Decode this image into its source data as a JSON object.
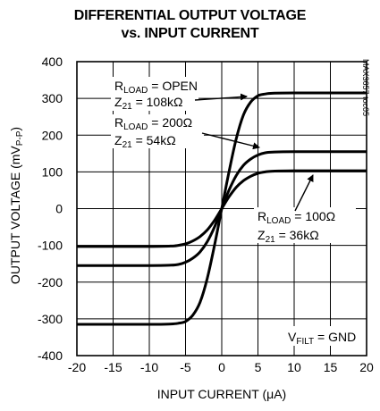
{
  "chart_data": {
    "type": "line",
    "title_line1": "DIFFERENTIAL OUTPUT VOLTAGE",
    "title_line2": "vs. INPUT CURRENT",
    "xlabel": "INPUT CURRENT (μA)",
    "ylabel": "OUTPUT VOLTAGE (mVP-P)",
    "xlim": [
      -20,
      20
    ],
    "ylim": [
      -400,
      400
    ],
    "x_ticks": [
      "-20",
      "-15",
      "-10",
      "-5",
      "0",
      "5",
      "10",
      "15",
      "20"
    ],
    "y_ticks": [
      "400",
      "300",
      "200",
      "100",
      "0",
      "-100",
      "-200",
      "-300",
      "-400"
    ],
    "grid": true,
    "figure_code": "MAX3657 toc05",
    "condition": "VFILT = GND",
    "series": [
      {
        "label_line1": "RLOAD = OPEN",
        "label_line2": "Z21 = 108kΩ",
        "x": [
          -20,
          -10,
          -7,
          -6,
          -5,
          -4,
          -3,
          -2,
          -1,
          0,
          1,
          2,
          3,
          4,
          5,
          6,
          7,
          10,
          20
        ],
        "y": [
          -315,
          -315,
          -314,
          -312,
          -307,
          -290,
          -255,
          -190,
          -100,
          0,
          100,
          190,
          255,
          290,
          307,
          312,
          314,
          315,
          315
        ]
      },
      {
        "label_line1": "RLOAD = 200Ω",
        "label_line2": "Z21 = 54kΩ",
        "x": [
          -20,
          -10,
          -7,
          -6,
          -5,
          -4,
          -3,
          -2,
          -1,
          0,
          1,
          2,
          3,
          4,
          5,
          6,
          7,
          10,
          20
        ],
        "y": [
          -155,
          -155,
          -154,
          -152,
          -146,
          -135,
          -118,
          -90,
          -50,
          0,
          50,
          90,
          118,
          135,
          146,
          152,
          154,
          155,
          155
        ]
      },
      {
        "label_line1": "RLOAD = 100Ω",
        "label_line2": "Z21 = 36kΩ",
        "x": [
          -20,
          -10,
          -7,
          -6,
          -5,
          -4,
          -3,
          -2,
          -1,
          0,
          1,
          2,
          3,
          4,
          5,
          6,
          7,
          10,
          20
        ],
        "y": [
          -103,
          -103,
          -102,
          -100,
          -96,
          -88,
          -76,
          -58,
          -32,
          0,
          32,
          58,
          76,
          88,
          96,
          100,
          102,
          103,
          103
        ]
      }
    ]
  }
}
